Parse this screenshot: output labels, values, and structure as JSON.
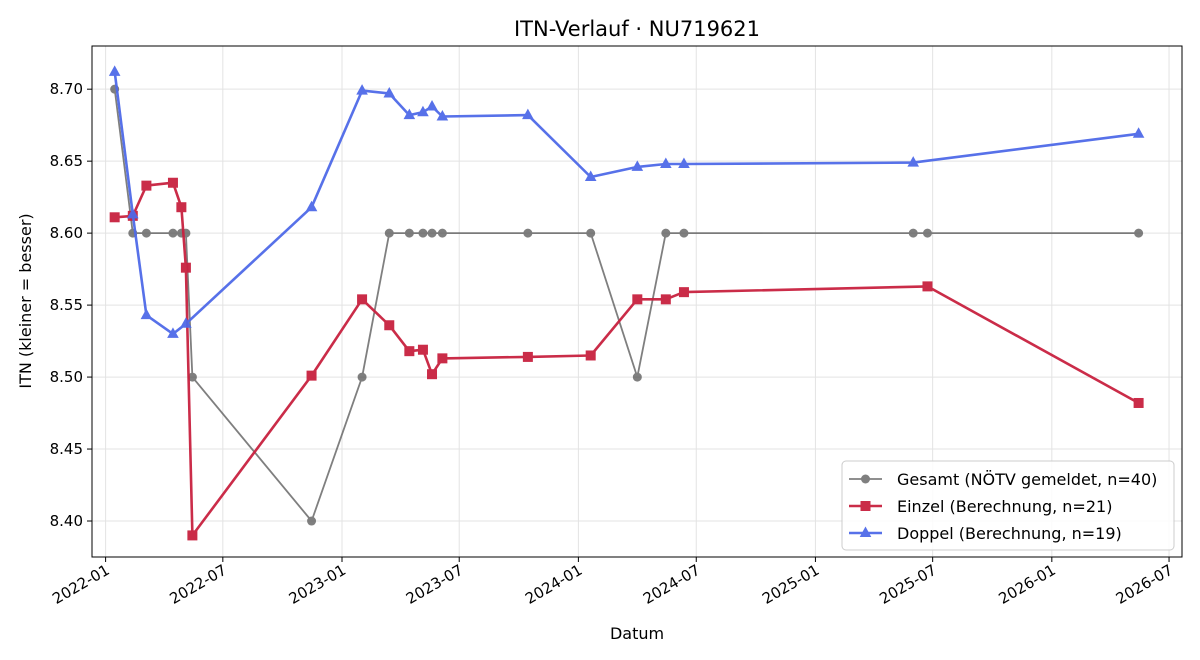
{
  "chart_data": {
    "type": "line",
    "title": "ITN-Verlauf · NU719621",
    "xlabel": "Datum",
    "ylabel": "ITN  (kleiner = besser)",
    "x_ticks": [
      "2022-01",
      "2022-07",
      "2023-01",
      "2023-07",
      "2024-01",
      "2024-07",
      "2025-01",
      "2025-07",
      "2026-01",
      "2026-07"
    ],
    "y_ticks": [
      "8.40",
      "8.45",
      "8.50",
      "8.55",
      "8.60",
      "8.65",
      "8.70"
    ],
    "xlim": [
      "2021-12-11",
      "2026-07-21"
    ],
    "ylim": [
      8.375,
      8.73
    ],
    "grid": true,
    "legend_position": "bottom-right",
    "series": [
      {
        "name": "Gesamt (NÖTV gemeldet, n=40)",
        "color": "#555555",
        "marker": "circle",
        "points": [
          [
            "2022-01-15",
            8.7
          ],
          [
            "2022-02-12",
            8.6
          ],
          [
            "2022-03-05",
            8.6
          ],
          [
            "2022-04-15",
            8.6
          ],
          [
            "2022-04-28",
            8.6
          ],
          [
            "2022-05-05",
            8.6
          ],
          [
            "2022-05-15",
            8.5
          ],
          [
            "2022-11-15",
            8.4
          ],
          [
            "2023-02-01",
            8.5
          ],
          [
            "2023-03-15",
            8.6
          ],
          [
            "2023-04-15",
            8.6
          ],
          [
            "2023-05-06",
            8.6
          ],
          [
            "2023-05-20",
            8.6
          ],
          [
            "2023-06-05",
            8.6
          ],
          [
            "2023-10-15",
            8.6
          ],
          [
            "2024-01-20",
            8.6
          ],
          [
            "2024-04-01",
            8.5
          ],
          [
            "2024-05-15",
            8.6
          ],
          [
            "2024-06-12",
            8.6
          ],
          [
            "2025-06-01",
            8.6
          ],
          [
            "2025-06-23",
            8.6
          ],
          [
            "2026-05-15",
            8.6
          ]
        ]
      },
      {
        "name": "Einzel (Berechnung, n=21)",
        "color": "#c8213f",
        "marker": "square",
        "points": [
          [
            "2022-01-15",
            8.611
          ],
          [
            "2022-02-12",
            8.612
          ],
          [
            "2022-03-05",
            8.633
          ],
          [
            "2022-04-15",
            8.635
          ],
          [
            "2022-04-28",
            8.618
          ],
          [
            "2022-05-05",
            8.576
          ],
          [
            "2022-05-15",
            8.39
          ],
          [
            "2022-11-15",
            8.501
          ],
          [
            "2023-02-01",
            8.554
          ],
          [
            "2023-03-15",
            8.536
          ],
          [
            "2023-04-15",
            8.518
          ],
          [
            "2023-05-06",
            8.519
          ],
          [
            "2023-05-20",
            8.502
          ],
          [
            "2023-06-05",
            8.513
          ],
          [
            "2023-10-15",
            8.514
          ],
          [
            "2024-01-20",
            8.515
          ],
          [
            "2024-04-01",
            8.554
          ],
          [
            "2024-05-15",
            8.554
          ],
          [
            "2024-06-12",
            8.559
          ],
          [
            "2025-06-23",
            8.563
          ],
          [
            "2026-05-15",
            8.482
          ]
        ]
      },
      {
        "name": "Doppel (Berechnung, n=19)",
        "color": "#4f6ae8",
        "marker": "triangle",
        "points": [
          [
            "2022-01-15",
            8.712
          ],
          [
            "2022-02-12",
            8.613
          ],
          [
            "2022-03-05",
            8.543
          ],
          [
            "2022-04-15",
            8.53
          ],
          [
            "2022-05-05",
            8.537
          ],
          [
            "2022-11-15",
            8.618
          ],
          [
            "2023-02-01",
            8.699
          ],
          [
            "2023-03-15",
            8.697
          ],
          [
            "2023-04-15",
            8.682
          ],
          [
            "2023-05-06",
            8.684
          ],
          [
            "2023-05-20",
            8.688
          ],
          [
            "2023-06-05",
            8.681
          ],
          [
            "2023-10-15",
            8.682
          ],
          [
            "2024-01-20",
            8.639
          ],
          [
            "2024-04-01",
            8.646
          ],
          [
            "2024-05-15",
            8.648
          ],
          [
            "2024-06-12",
            8.648
          ],
          [
            "2025-06-01",
            8.649
          ],
          [
            "2026-05-15",
            8.669
          ]
        ]
      }
    ]
  }
}
